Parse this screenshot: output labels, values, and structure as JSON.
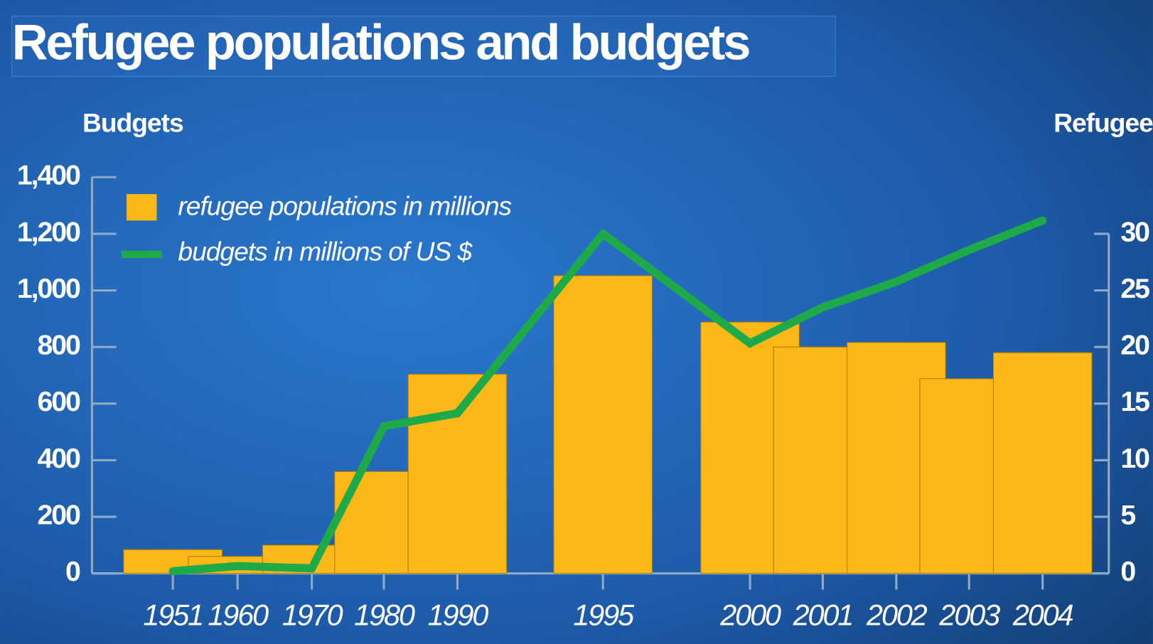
{
  "chart_data": {
    "type": "bar_line",
    "title": "Refugee populations and budgets",
    "y_label": "Budgets",
    "y2_label": "Refugees",
    "categories": [
      "1951",
      "1960",
      "1970",
      "1980",
      "1990",
      "1995",
      "2000",
      "2001",
      "2002",
      "2003",
      "2004"
    ],
    "x_positions": [
      1951,
      1960,
      1970,
      1980,
      1990,
      1995,
      2000,
      2001,
      2002,
      2003,
      2004
    ],
    "series": [
      {
        "name": "refugee populations in millions",
        "type": "bar",
        "axis": "y2",
        "color": "#fbb817",
        "values": [
          2.1,
          1.5,
          2.5,
          9.0,
          17.6,
          26.3,
          22.2,
          20.0,
          20.4,
          17.2,
          19.5
        ]
      },
      {
        "name": "budgets in millions of US $",
        "type": "line",
        "color": "#1faa4a",
        "values": [
          8,
          26,
          18,
          520,
          566,
          1200,
          813,
          940,
          1031,
          1143,
          1247
        ]
      }
    ],
    "ylim": [
      0,
      1400
    ],
    "yticks": [
      0,
      200,
      400,
      600,
      800,
      {
        "value": 1000,
        "label": "1,000"
      },
      {
        "value": 1200,
        "label": "1,200"
      },
      {
        "value": 1400,
        "label": "1,400"
      }
    ],
    "y2lim": [
      0,
      35
    ],
    "y2ticks": [
      0,
      5,
      10,
      15,
      20,
      25,
      30
    ]
  }
}
